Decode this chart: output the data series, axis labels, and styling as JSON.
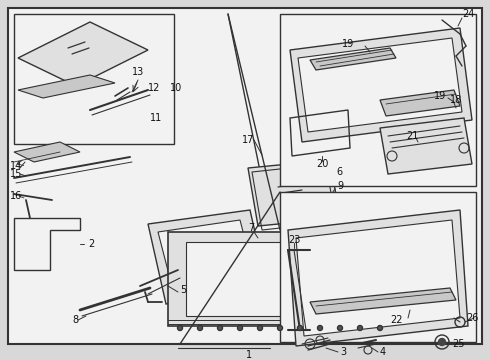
{
  "bg_color": "#d8d8d8",
  "border_color": "#333333",
  "line_color": "#333333",
  "fill_light": "#f2f2f2",
  "fill_mid": "#e0e0e0",
  "fill_dark": "#c8c8c8"
}
